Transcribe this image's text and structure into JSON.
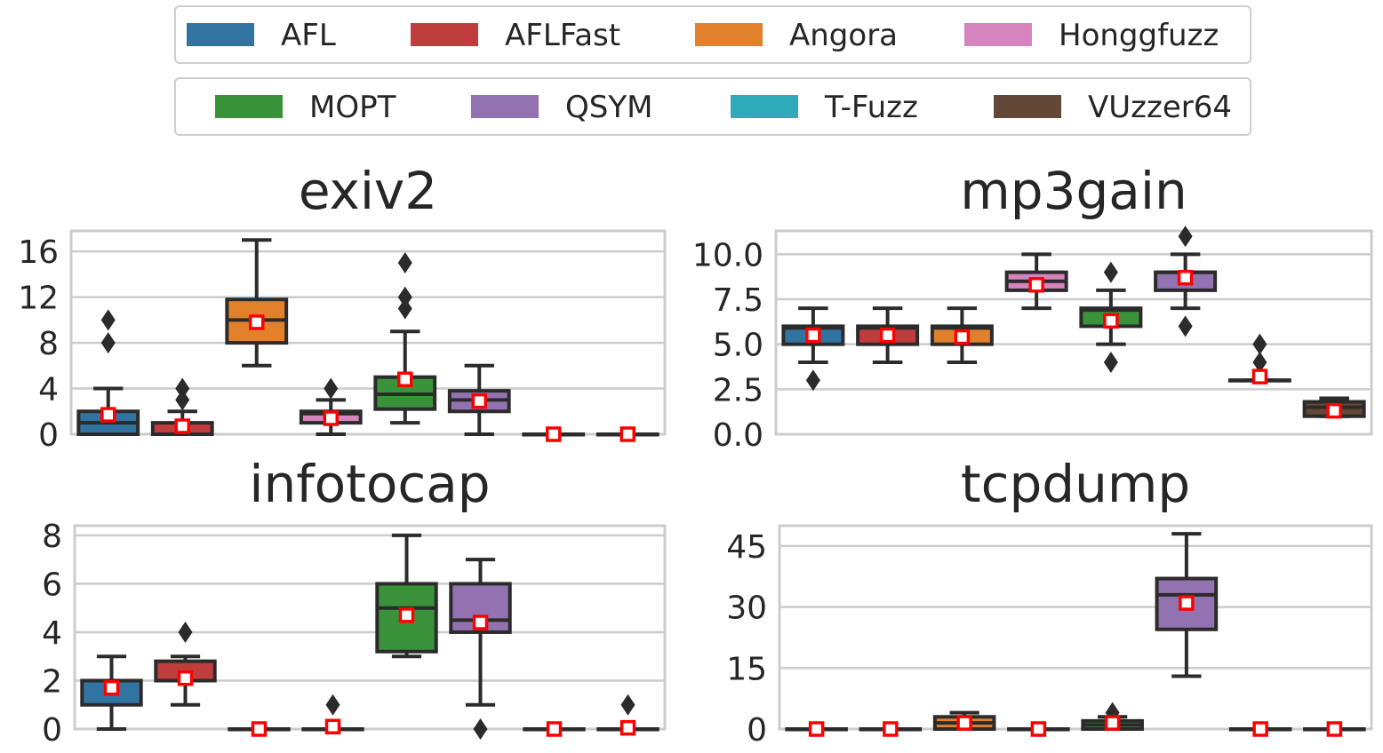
{
  "legend": {
    "rows": [
      [
        {
          "label": "AFL",
          "color": "#3274a1"
        },
        {
          "label": "AFLFast",
          "color": "#c03d3e"
        },
        {
          "label": "Angora",
          "color": "#e1812c"
        },
        {
          "label": "Honggfuzz",
          "color": "#d684bd"
        }
      ],
      [
        {
          "label": "MOPT",
          "color": "#3a923a"
        },
        {
          "label": "QSYM",
          "color": "#9372b2"
        },
        {
          "label": "T-Fuzz",
          "color": "#2eaab8"
        },
        {
          "label": "VUzzer64",
          "color": "#634838"
        }
      ]
    ]
  },
  "chart_data": [
    {
      "type": "box",
      "title": "exiv2",
      "xlabel": "",
      "ylabel": "",
      "ylim": [
        0,
        17.8
      ],
      "yticks": [
        0,
        4,
        8,
        12,
        16
      ],
      "ytick_labels": [
        "0",
        "4",
        "8",
        "12",
        "16"
      ],
      "grid": true,
      "series": [
        {
          "name": "AFL",
          "q1": 0,
          "median": 1,
          "q3": 2,
          "whisker_low": 0,
          "whisker_high": 4,
          "mean": 1.7,
          "outliers": [
            8,
            10
          ]
        },
        {
          "name": "AFLFast",
          "q1": 0,
          "median": 0,
          "q3": 1,
          "whisker_low": 0,
          "whisker_high": 2,
          "mean": 0.7,
          "outliers": [
            3,
            4
          ]
        },
        {
          "name": "Angora",
          "q1": 8,
          "median": 10,
          "q3": 11.8,
          "whisker_low": 6,
          "whisker_high": 17,
          "mean": 9.8,
          "outliers": []
        },
        {
          "name": "Honggfuzz",
          "q1": 1,
          "median": 1.8,
          "q3": 2,
          "whisker_low": 0,
          "whisker_high": 3,
          "mean": 1.4,
          "outliers": [
            4
          ]
        },
        {
          "name": "MOPT",
          "q1": 2.2,
          "median": 3.5,
          "q3": 5,
          "whisker_low": 1,
          "whisker_high": 9,
          "mean": 4.8,
          "outliers": [
            11,
            12,
            15
          ]
        },
        {
          "name": "QSYM",
          "q1": 2,
          "median": 3,
          "q3": 3.8,
          "whisker_low": 0,
          "whisker_high": 6,
          "mean": 2.9,
          "outliers": []
        },
        {
          "name": "T-Fuzz",
          "q1": 0,
          "median": 0,
          "q3": 0,
          "whisker_low": 0,
          "whisker_high": 0,
          "mean": 0,
          "outliers": []
        },
        {
          "name": "VUzzer64",
          "q1": 0,
          "median": 0,
          "q3": 0,
          "whisker_low": 0,
          "whisker_high": 0,
          "mean": 0,
          "outliers": []
        }
      ]
    },
    {
      "type": "box",
      "title": "mp3gain",
      "xlabel": "",
      "ylabel": "",
      "ylim": [
        0,
        11.3
      ],
      "yticks": [
        0,
        2.5,
        5,
        7.5,
        10
      ],
      "ytick_labels": [
        "0.0",
        "2.5",
        "5.0",
        "7.5",
        "10.0"
      ],
      "grid": true,
      "series": [
        {
          "name": "AFL",
          "q1": 5,
          "median": 5.9,
          "q3": 6,
          "whisker_low": 4,
          "whisker_high": 7,
          "mean": 5.5,
          "outliers": [
            3
          ]
        },
        {
          "name": "AFLFast",
          "q1": 5,
          "median": 5.9,
          "q3": 6,
          "whisker_low": 4,
          "whisker_high": 7,
          "mean": 5.5,
          "outliers": []
        },
        {
          "name": "Angora",
          "q1": 5,
          "median": 5.9,
          "q3": 6,
          "whisker_low": 4,
          "whisker_high": 7,
          "mean": 5.4,
          "outliers": []
        },
        {
          "name": "Honggfuzz",
          "q1": 8,
          "median": 8.5,
          "q3": 9,
          "whisker_low": 7,
          "whisker_high": 10,
          "mean": 8.3,
          "outliers": []
        },
        {
          "name": "MOPT",
          "q1": 6,
          "median": 6.9,
          "q3": 7,
          "whisker_low": 5,
          "whisker_high": 8,
          "mean": 6.3,
          "outliers": [
            4,
            9
          ]
        },
        {
          "name": "QSYM",
          "q1": 8,
          "median": 9,
          "q3": 9,
          "whisker_low": 7,
          "whisker_high": 10,
          "mean": 8.7,
          "outliers": [
            6,
            11
          ]
        },
        {
          "name": "T-Fuzz",
          "q1": 3,
          "median": 3,
          "q3": 3,
          "whisker_low": 3,
          "whisker_high": 3,
          "mean": 3.2,
          "outliers": [
            4,
            5
          ]
        },
        {
          "name": "VUzzer64",
          "q1": 1,
          "median": 1.5,
          "q3": 1.8,
          "whisker_low": 1,
          "whisker_high": 2,
          "mean": 1.3,
          "outliers": []
        }
      ]
    },
    {
      "type": "box",
      "title": "infotocap",
      "xlabel": "",
      "ylabel": "",
      "ylim": [
        0,
        8.4
      ],
      "yticks": [
        0,
        2,
        4,
        6,
        8
      ],
      "ytick_labels": [
        "0",
        "2",
        "4",
        "6",
        "8"
      ],
      "grid": true,
      "series": [
        {
          "name": "AFL",
          "q1": 1,
          "median": 2,
          "q3": 2,
          "whisker_low": 0,
          "whisker_high": 3,
          "mean": 1.7,
          "outliers": []
        },
        {
          "name": "AFLFast",
          "q1": 2,
          "median": 2,
          "q3": 2.8,
          "whisker_low": 1,
          "whisker_high": 3,
          "mean": 2.1,
          "outliers": [
            4
          ]
        },
        {
          "name": "Angora",
          "q1": 0,
          "median": 0,
          "q3": 0,
          "whisker_low": 0,
          "whisker_high": 0,
          "mean": 0,
          "outliers": []
        },
        {
          "name": "Honggfuzz",
          "q1": 0,
          "median": 0,
          "q3": 0,
          "whisker_low": 0,
          "whisker_high": 0,
          "mean": 0.1,
          "outliers": [
            1
          ]
        },
        {
          "name": "MOPT",
          "q1": 3.2,
          "median": 5,
          "q3": 6,
          "whisker_low": 3,
          "whisker_high": 8,
          "mean": 4.7,
          "outliers": []
        },
        {
          "name": "QSYM",
          "q1": 4,
          "median": 4.5,
          "q3": 6,
          "whisker_low": 1,
          "whisker_high": 7,
          "mean": 4.4,
          "outliers": [
            0
          ]
        },
        {
          "name": "T-Fuzz",
          "q1": 0,
          "median": 0,
          "q3": 0,
          "whisker_low": 0,
          "whisker_high": 0,
          "mean": 0,
          "outliers": []
        },
        {
          "name": "VUzzer64",
          "q1": 0,
          "median": 0,
          "q3": 0,
          "whisker_low": 0,
          "whisker_high": 0,
          "mean": 0.05,
          "outliers": [
            1
          ]
        }
      ]
    },
    {
      "type": "box",
      "title": "tcpdump",
      "xlabel": "",
      "ylabel": "",
      "ylim": [
        0,
        50
      ],
      "yticks": [
        0,
        15,
        30,
        45
      ],
      "ytick_labels": [
        "0",
        "15",
        "30",
        "45"
      ],
      "grid": true,
      "series": [
        {
          "name": "AFL",
          "q1": 0,
          "median": 0,
          "q3": 0,
          "whisker_low": 0,
          "whisker_high": 0,
          "mean": 0,
          "outliers": []
        },
        {
          "name": "AFLFast",
          "q1": 0,
          "median": 0,
          "q3": 0,
          "whisker_low": 0,
          "whisker_high": 0,
          "mean": 0,
          "outliers": []
        },
        {
          "name": "Angora",
          "q1": 0,
          "median": 1.5,
          "q3": 3,
          "whisker_low": 0,
          "whisker_high": 4,
          "mean": 1.5,
          "outliers": []
        },
        {
          "name": "Honggfuzz",
          "q1": 0,
          "median": 0,
          "q3": 0,
          "whisker_low": 0,
          "whisker_high": 0,
          "mean": 0,
          "outliers": []
        },
        {
          "name": "MOPT",
          "q1": 0,
          "median": 1,
          "q3": 2,
          "whisker_low": 0,
          "whisker_high": 3,
          "mean": 1.5,
          "outliers": [
            4
          ]
        },
        {
          "name": "QSYM",
          "q1": 24.5,
          "median": 33,
          "q3": 37,
          "whisker_low": 13,
          "whisker_high": 48,
          "mean": 31,
          "outliers": []
        },
        {
          "name": "T-Fuzz",
          "q1": 0,
          "median": 0,
          "q3": 0,
          "whisker_low": 0,
          "whisker_high": 0,
          "mean": 0,
          "outliers": []
        },
        {
          "name": "VUzzer64",
          "q1": 0,
          "median": 0,
          "q3": 0,
          "whisker_low": 0,
          "whisker_high": 0,
          "mean": 0,
          "outliers": []
        }
      ]
    }
  ]
}
